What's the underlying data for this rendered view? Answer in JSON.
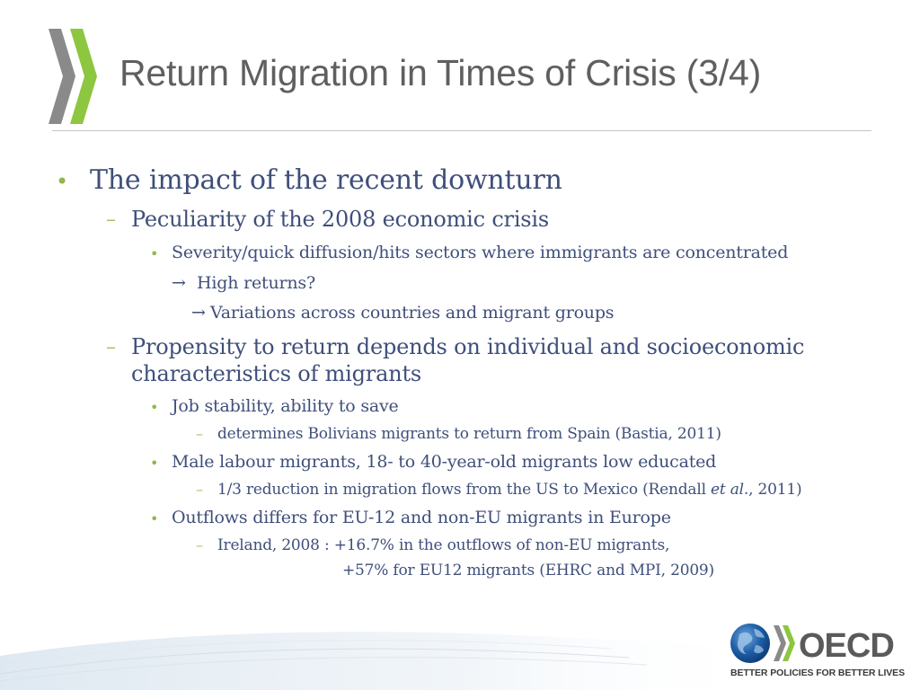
{
  "slide": {
    "title": "Return Migration in Times of Crisis (3/4)"
  },
  "content": {
    "l1_title": "The impact of the recent downturn",
    "l2_peculiarity": "Peculiarity of the 2008 economic crisis",
    "l3_severity": "Severity/quick diffusion/hits sectors where immigrants are concentrated",
    "arrow_high_returns": "High returns?",
    "arrow_variations": "Variations across countries and migrant groups",
    "l2_propensity_line1": "Propensity to return depends on individual and socioeconomic",
    "l2_propensity_line2": "characteristics of migrants",
    "l3_job_stability": "Job stability, ability to save",
    "l4_bolivians": "determines Bolivians migrants to return from Spain (Bastia, 2011)",
    "l3_male_labour": "Male labour migrants, 18- to 40-year-old migrants low educated",
    "l4_reduction_pre": "1/3 reduction in migration flows from the US to Mexico (Rendall ",
    "l4_reduction_italic": "et al",
    "l4_reduction_post": "., 2011)",
    "l3_outflows": "Outflows differs for EU-12 and non-EU migrants in Europe",
    "l4_ireland_line1": "Ireland, 2008 : +16.7% in the outflows of non-EU migrants,",
    "l4_ireland_line2": "+57% for EU12 migrants (EHRC and MPI, 2009)"
  },
  "markers": {
    "bullet": "•",
    "dash": "–",
    "arrow": "→"
  },
  "footer": {
    "logo_text": "OECD",
    "tagline": "BETTER POLICIES FOR BETTER LIVES"
  },
  "colors": {
    "title": "#5f5f5f",
    "body_text": "#3f4f7a",
    "accent_green": "#8fb84a",
    "chevron_green": "#8dc63f",
    "chevron_grey": "#8a8a8a",
    "oecd_blue": "#1f5fa8"
  },
  "icons": {
    "header": "double-chevron-icon",
    "logo": "oecd-globe-icon"
  }
}
